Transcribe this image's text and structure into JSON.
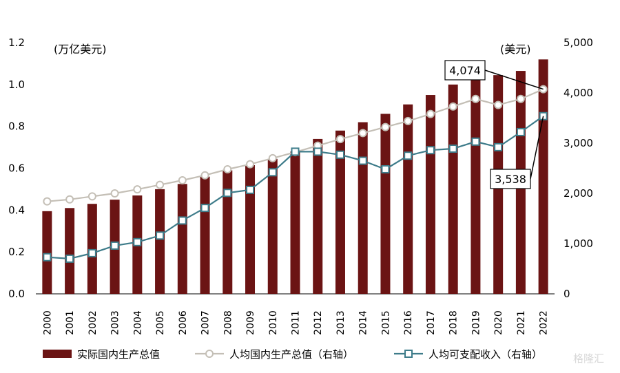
{
  "chart_data": {
    "type": "bar",
    "categories": [
      "2000",
      "2001",
      "2002",
      "2003",
      "2004",
      "2005",
      "2006",
      "2007",
      "2008",
      "2009",
      "2010",
      "2011",
      "2012",
      "2013",
      "2014",
      "2015",
      "2016",
      "2017",
      "2018",
      "2019",
      "2020",
      "2021",
      "2022"
    ],
    "left_axis": {
      "unit_label": "(万亿美元)",
      "ylim": [
        0,
        1.2
      ],
      "ticks": [
        "0.0",
        "0.2",
        "0.4",
        "0.6",
        "0.8",
        "1.0",
        "1.2"
      ]
    },
    "right_axis": {
      "unit_label": "(美元)",
      "ylim": [
        0,
        5000
      ],
      "ticks": [
        "0",
        "1,000",
        "2,000",
        "3,000",
        "4,000",
        "5,000"
      ]
    },
    "series": [
      {
        "name": "实际国内生产总值",
        "type": "bar",
        "axis": "left",
        "color": "#6b1414",
        "values": [
          0.395,
          0.41,
          0.43,
          0.45,
          0.47,
          0.5,
          0.525,
          0.56,
          0.59,
          0.615,
          0.645,
          0.68,
          0.74,
          0.78,
          0.82,
          0.86,
          0.905,
          0.95,
          1.0,
          1.035,
          1.045,
          1.065,
          1.12
        ]
      },
      {
        "name": "人均国内生产总值（右轴）",
        "type": "line",
        "axis": "right",
        "color": "#c4bfb6",
        "marker": "circle",
        "values": [
          1840,
          1880,
          1940,
          2000,
          2080,
          2170,
          2260,
          2360,
          2480,
          2580,
          2700,
          2820,
          2950,
          3080,
          3200,
          3320,
          3440,
          3580,
          3730,
          3880,
          3760,
          3880,
          4074
        ]
      },
      {
        "name": "人均可支配收入（右轴）",
        "type": "line",
        "axis": "right",
        "color": "#3e7c8a",
        "marker": "square",
        "values": [
          730,
          700,
          810,
          960,
          1030,
          1160,
          1460,
          1710,
          2010,
          2070,
          2420,
          2830,
          2830,
          2770,
          2650,
          2480,
          2750,
          2860,
          2890,
          3030,
          2920,
          3220,
          3538
        ]
      }
    ],
    "annotations": [
      {
        "text": "4,074",
        "series": 1,
        "index": 22
      },
      {
        "text": "3,538",
        "series": 2,
        "index": 22
      }
    ],
    "grid": false,
    "legend_position": "bottom"
  },
  "watermark": "格隆汇"
}
